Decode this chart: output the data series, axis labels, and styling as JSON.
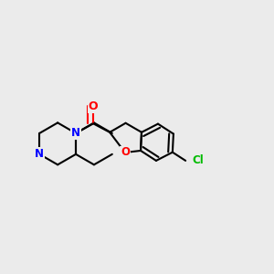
{
  "background_color": "#ebebeb",
  "bond_color": "#000000",
  "nitrogen_color": "#0000ff",
  "oxygen_color": "#ff0000",
  "chlorine_color": "#00bb00",
  "line_width": 1.5,
  "figsize": [
    3.0,
    3.0
  ],
  "dpi": 100,
  "xlim": [
    0.0,
    1.0
  ],
  "ylim": [
    0.25,
    0.85
  ]
}
